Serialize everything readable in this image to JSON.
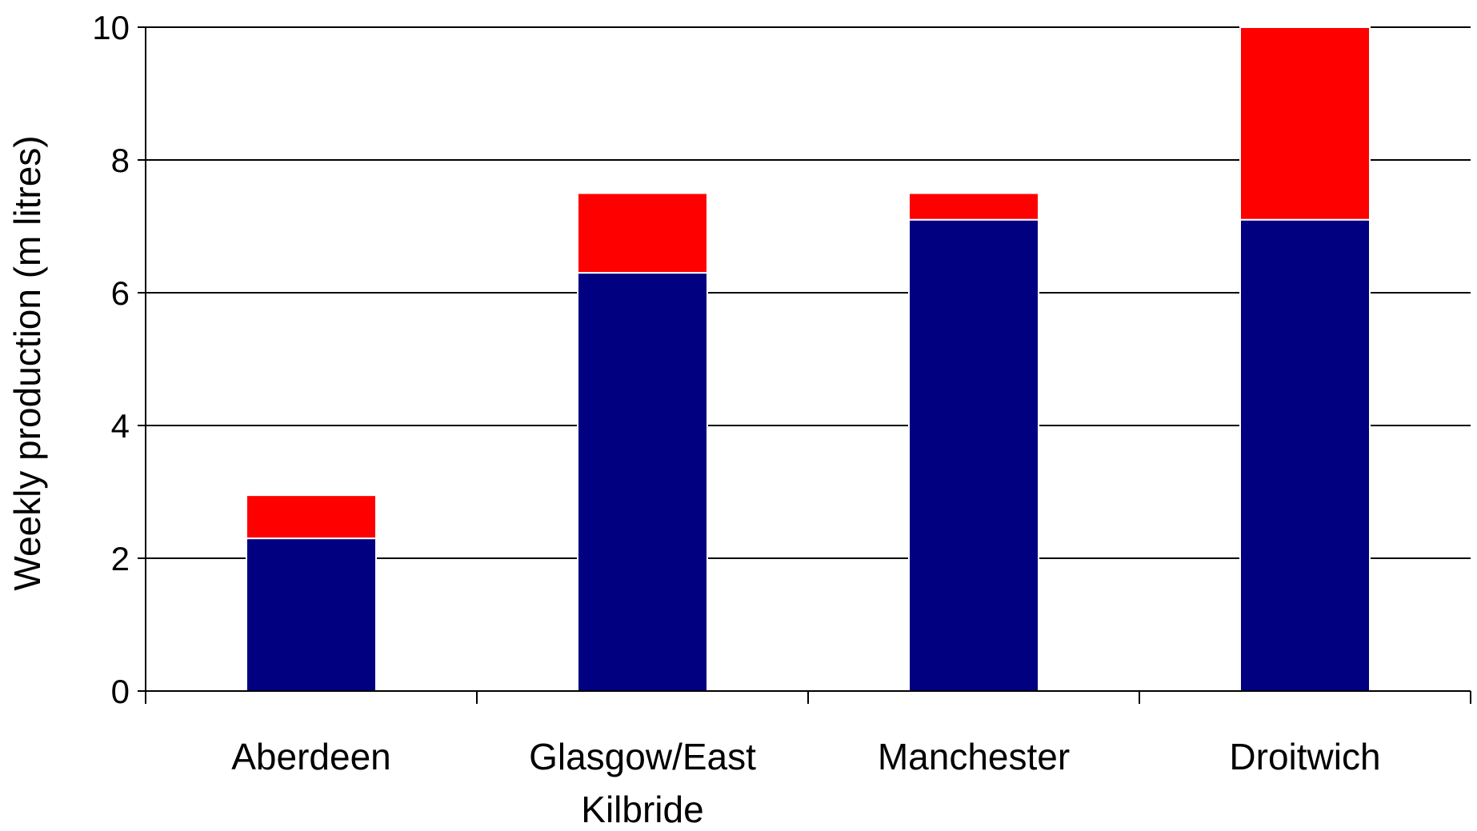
{
  "chart_data": {
    "type": "bar",
    "stacked": true,
    "categories": [
      [
        "Aberdeen"
      ],
      [
        "Glasgow/East",
        "Kilbride"
      ],
      [
        "Manchester"
      ],
      [
        "Droitwich"
      ]
    ],
    "series": [
      {
        "values": [
          2.3,
          6.3,
          7.1,
          7.1
        ],
        "color": "#000080"
      },
      {
        "values": [
          0.65,
          1.2,
          0.4,
          2.9
        ],
        "color": "#ff0000"
      }
    ],
    "xlabel": "",
    "ylabel": "Weekly production (m litres)",
    "ylim": [
      0,
      10
    ],
    "yticks": [
      0,
      2,
      4,
      6,
      8,
      10
    ],
    "grid": true,
    "legend": "none"
  }
}
